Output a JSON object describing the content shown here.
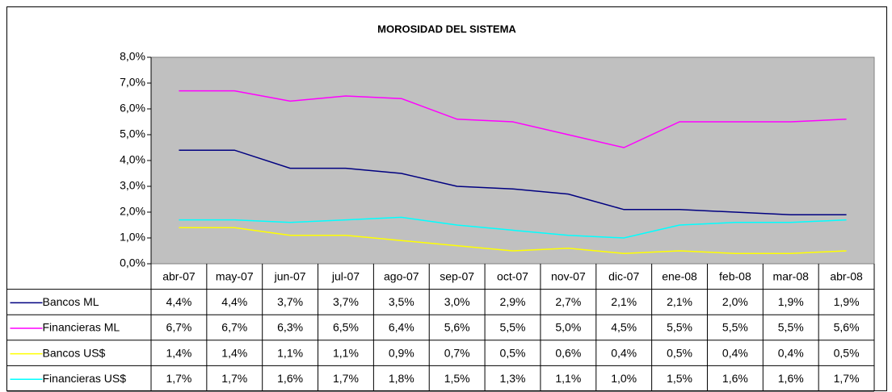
{
  "chart_data": {
    "type": "line",
    "title": "MOROSIDAD DEL SISTEMA",
    "categories": [
      "abr-07",
      "may-07",
      "jun-07",
      "jul-07",
      "ago-07",
      "sep-07",
      "oct-07",
      "nov-07",
      "dic-07",
      "ene-08",
      "feb-08",
      "mar-08",
      "abr-08"
    ],
    "series": [
      {
        "name": "Bancos ML",
        "color": "#000080",
        "values": [
          4.4,
          4.4,
          3.7,
          3.7,
          3.5,
          3.0,
          2.9,
          2.7,
          2.1,
          2.1,
          2.0,
          1.9,
          1.9
        ],
        "value_labels": [
          "4,4%",
          "4,4%",
          "3,7%",
          "3,7%",
          "3,5%",
          "3,0%",
          "2,9%",
          "2,7%",
          "2,1%",
          "2,1%",
          "2,0%",
          "1,9%",
          "1,9%"
        ]
      },
      {
        "name": "Financieras ML",
        "color": "#ff00ff",
        "values": [
          6.7,
          6.7,
          6.3,
          6.5,
          6.4,
          5.6,
          5.5,
          5.0,
          4.5,
          5.5,
          5.5,
          5.5,
          5.6
        ],
        "value_labels": [
          "6,7%",
          "6,7%",
          "6,3%",
          "6,5%",
          "6,4%",
          "5,6%",
          "5,5%",
          "5,0%",
          "4,5%",
          "5,5%",
          "5,5%",
          "5,5%",
          "5,6%"
        ]
      },
      {
        "name": "Bancos US$",
        "color": "#ffff00",
        "values": [
          1.4,
          1.4,
          1.1,
          1.1,
          0.9,
          0.7,
          0.5,
          0.6,
          0.4,
          0.5,
          0.4,
          0.4,
          0.5
        ],
        "value_labels": [
          "1,4%",
          "1,4%",
          "1,1%",
          "1,1%",
          "0,9%",
          "0,7%",
          "0,5%",
          "0,6%",
          "0,4%",
          "0,5%",
          "0,4%",
          "0,4%",
          "0,5%"
        ]
      },
      {
        "name": "Financieras US$",
        "color": "#00ffff",
        "values": [
          1.7,
          1.7,
          1.6,
          1.7,
          1.8,
          1.5,
          1.3,
          1.1,
          1.0,
          1.5,
          1.6,
          1.6,
          1.7
        ],
        "value_labels": [
          "1,7%",
          "1,7%",
          "1,6%",
          "1,7%",
          "1,8%",
          "1,5%",
          "1,3%",
          "1,1%",
          "1,0%",
          "1,5%",
          "1,6%",
          "1,6%",
          "1,7%"
        ]
      }
    ],
    "ylim": [
      0,
      8
    ],
    "yticks": [
      {
        "value": 0,
        "label": "0,0%"
      },
      {
        "value": 1,
        "label": "1,0%"
      },
      {
        "value": 2,
        "label": "2,0%"
      },
      {
        "value": 3,
        "label": "3,0%"
      },
      {
        "value": 4,
        "label": "4,0%"
      },
      {
        "value": 5,
        "label": "5,0%"
      },
      {
        "value": 6,
        "label": "6,0%"
      },
      {
        "value": 7,
        "label": "7,0%"
      },
      {
        "value": 8,
        "label": "8,0%"
      }
    ],
    "plot_background": "#c0c0c0"
  }
}
